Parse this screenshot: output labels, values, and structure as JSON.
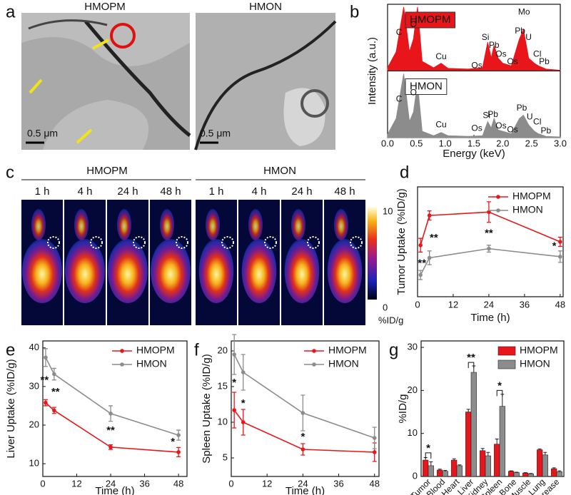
{
  "panel_labels": [
    "a",
    "b",
    "c",
    "d",
    "e",
    "f",
    "g"
  ],
  "panel_a": {
    "titles": [
      "HMOPM",
      "HMON"
    ],
    "scale_bars": [
      "0.5  μm",
      "0.5  μm"
    ]
  },
  "panel_c": {
    "groups": [
      "HMOPM",
      "HMON"
    ],
    "times": [
      "1 h",
      "4 h",
      "24 h",
      "48 h",
      "1 h",
      "4 h",
      "24 h",
      "48 h"
    ],
    "colorbar_labels": [
      "10",
      "0"
    ],
    "colorbar_unit": "%ID/g"
  },
  "chart_data": [
    {
      "type": "area",
      "xlabel": "Energy (keV)",
      "ylabel": "Intensity (a.u.)",
      "x": [
        0,
        0.15,
        0.28,
        0.38,
        0.45,
        0.52,
        0.6,
        0.8,
        0.93,
        1.05,
        1.4,
        1.65,
        1.74,
        1.8,
        1.85,
        1.92,
        2.0,
        2.15,
        2.29,
        2.36,
        2.45,
        2.55,
        2.62,
        2.75,
        3.0
      ],
      "xlim": [
        0,
        3
      ],
      "xticks": [
        {
          "value": 0,
          "label": "0.0"
        },
        {
          "value": 0.5,
          "label": "0.5"
        },
        {
          "value": 1,
          "label": "1.0"
        },
        {
          "value": 1.5,
          "label": "1.5"
        },
        {
          "value": 2,
          "label": "2.0"
        },
        {
          "value": 2.5,
          "label": "2.5"
        },
        {
          "value": 3,
          "label": "3.0"
        }
      ],
      "ylim": [
        0,
        100
      ],
      "series": [
        {
          "name": "HMOPM",
          "color": "#e8161b",
          "values": [
            5,
            30,
            100,
            30,
            50,
            100,
            15,
            5,
            12,
            4,
            3,
            5,
            45,
            20,
            40,
            20,
            12,
            8,
            50,
            65,
            20,
            12,
            8,
            3,
            1
          ],
          "annotations": [
            {
              "text": "C",
              "x": 0.2,
              "y": 60
            },
            {
              "text": "O",
              "x": 0.45,
              "y": 72
            },
            {
              "text": "Cu",
              "x": 0.93,
              "y": 22
            },
            {
              "text": "Os",
              "x": 1.55,
              "y": 8
            },
            {
              "text": "Si",
              "x": 1.7,
              "y": 52
            },
            {
              "text": "Pb",
              "x": 1.85,
              "y": 40
            },
            {
              "text": "Os",
              "x": 1.97,
              "y": 26
            },
            {
              "text": "Os",
              "x": 2.17,
              "y": 14
            },
            {
              "text": "Mo",
              "x": 2.37,
              "y": 92,
              "color": "#1c3fc4"
            },
            {
              "text": "Pb",
              "x": 2.3,
              "y": 62
            },
            {
              "text": "U",
              "x": 2.45,
              "y": 52
            },
            {
              "text": "Cl",
              "x": 2.6,
              "y": 26
            },
            {
              "text": "Pb",
              "x": 2.72,
              "y": 14
            }
          ]
        },
        {
          "name": "HMON",
          "color": "#8c8c8c",
          "values": [
            5,
            30,
            100,
            25,
            40,
            85,
            10,
            3,
            8,
            3,
            2,
            3,
            25,
            15,
            30,
            12,
            10,
            6,
            30,
            35,
            20,
            10,
            6,
            2,
            1
          ],
          "annotations": [
            {
              "text": "C",
              "x": 0.2,
              "y": 60
            },
            {
              "text": "O",
              "x": 0.45,
              "y": 70
            },
            {
              "text": "Cu",
              "x": 0.93,
              "y": 20
            },
            {
              "text": "Os",
              "x": 1.55,
              "y": 14
            },
            {
              "text": "Si",
              "x": 1.72,
              "y": 34
            },
            {
              "text": "Pb",
              "x": 1.83,
              "y": 36
            },
            {
              "text": "Os",
              "x": 1.97,
              "y": 18
            },
            {
              "text": "Os",
              "x": 2.17,
              "y": 12
            },
            {
              "text": "Pb",
              "x": 2.33,
              "y": 46
            },
            {
              "text": "U",
              "x": 2.47,
              "y": 32
            },
            {
              "text": "Cl",
              "x": 2.6,
              "y": 24
            },
            {
              "text": "Pb",
              "x": 2.75,
              "y": 10
            }
          ]
        }
      ]
    },
    {
      "type": "line",
      "xlabel": "Time (h)",
      "ylabel": "Tumor Uptake (%ID/g)",
      "x": [
        1,
        4,
        24,
        48
      ],
      "xlim": [
        0,
        49
      ],
      "xticks": [
        0,
        12,
        24,
        36,
        48
      ],
      "ylim": [
        0,
        9.6
      ],
      "series": [
        {
          "name": "HMOPM",
          "color": "#e8161b",
          "values": [
            4.5,
            7.1,
            7.4,
            4.8
          ],
          "errors": [
            0.6,
            0.4,
            0.9,
            0.4
          ]
        },
        {
          "name": "HMON",
          "color": "#8c8c8c",
          "values": [
            1.9,
            3.4,
            4.2,
            3.5
          ],
          "errors": [
            0.4,
            0.6,
            0.3,
            0.5
          ]
        }
      ],
      "annotations": [
        {
          "text": "**",
          "x": 1.5,
          "y": 2.9
        },
        {
          "text": "**",
          "x": 5.5,
          "y": 5.1
        },
        {
          "text": "**",
          "x": 24,
          "y": 5.5
        },
        {
          "text": "*",
          "x": 46,
          "y": 4.4
        }
      ]
    },
    {
      "type": "line",
      "xlabel": "Time (h)",
      "ylabel": "Liver Uptake (%ID/g)",
      "x": [
        1,
        4,
        24,
        48
      ],
      "xlim": [
        0,
        51
      ],
      "xticks": [
        0,
        12,
        24,
        36,
        48
      ],
      "ylim": [
        6.7,
        41.8
      ],
      "yticks": [
        10,
        20,
        30,
        40
      ],
      "series": [
        {
          "name": "HMOPM",
          "color": "#e8161b",
          "values": [
            25.8,
            23.8,
            14.3,
            13.0
          ],
          "errors": [
            0.8,
            0.8,
            0.6,
            1.2
          ]
        },
        {
          "name": "HMON",
          "color": "#8c8c8c",
          "values": [
            37.5,
            33.2,
            23,
            17.4
          ],
          "errors": [
            2.3,
            1.5,
            2.0,
            1.3
          ]
        }
      ],
      "annotations": [
        {
          "text": "**",
          "x": 0.6,
          "y": 31.5
        },
        {
          "text": "**",
          "x": 4.5,
          "y": 28.5
        },
        {
          "text": "**",
          "x": 24,
          "y": 18.5
        },
        {
          "text": "*",
          "x": 46,
          "y": 15.6
        }
      ]
    },
    {
      "type": "line",
      "xlabel": "Time (h)",
      "ylabel": "Spleen Uptake (%ID/g)",
      "x": [
        1,
        4,
        24,
        48
      ],
      "xlim": [
        0,
        49.5
      ],
      "xticks": [
        0,
        12,
        24,
        36,
        48
      ],
      "ylim": [
        2.4,
        21.4
      ],
      "yticks": [
        5,
        10,
        15,
        20
      ],
      "series": [
        {
          "name": "HMOPM",
          "color": "#e8161b",
          "values": [
            11.7,
            10,
            6.2,
            5.8
          ],
          "errors": [
            2.5,
            1.8,
            0.8,
            1.3
          ]
        },
        {
          "name": "HMON",
          "color": "#8c8c8c",
          "values": [
            19.5,
            17,
            11.3,
            7.8
          ],
          "errors": [
            2.8,
            2.5,
            2.5,
            1.5
          ]
        }
      ],
      "annotations": [
        {
          "text": "*",
          "x": 1,
          "y": 15.5
        },
        {
          "text": "*",
          "x": 4,
          "y": 12.6
        },
        {
          "text": "*",
          "x": 24,
          "y": 7.9
        }
      ]
    },
    {
      "type": "bar",
      "ylabel": "%ID/g",
      "categories": [
        "Tumor",
        "Blood",
        "Heart",
        "Liver",
        "Kidney",
        "Spleen",
        "Bone",
        "Muscle",
        "Lung",
        "Pancrease"
      ],
      "ylim": [
        0,
        31.5
      ],
      "yticks": [
        0,
        10,
        20,
        30
      ],
      "series": [
        {
          "name": "HMOPM",
          "color": "#e8161b",
          "values": [
            3.8,
            1.5,
            3.8,
            15,
            6,
            7.5,
            1.2,
            0.8,
            6.2,
            1.8
          ],
          "errors": [
            0.6,
            0.2,
            0.3,
            0.6,
            0.5,
            1.2,
            0.1,
            0.1,
            0.2,
            0.2
          ]
        },
        {
          "name": "HMON",
          "color": "#8c8c8c",
          "values": [
            2.5,
            1.2,
            2.5,
            24.2,
            4.8,
            16.3,
            0.9,
            0.6,
            5,
            1.1
          ],
          "errors": [
            0.9,
            0.2,
            0.2,
            1.5,
            0.8,
            2.8,
            0.1,
            0.1,
            0.6,
            0.2
          ]
        }
      ],
      "annotations": [
        {
          "text": "*",
          "category": 0,
          "y": 5.5
        },
        {
          "text": "**",
          "category": 3,
          "y": 26.5
        },
        {
          "text": "*",
          "category": 5,
          "y": 20
        }
      ]
    }
  ]
}
